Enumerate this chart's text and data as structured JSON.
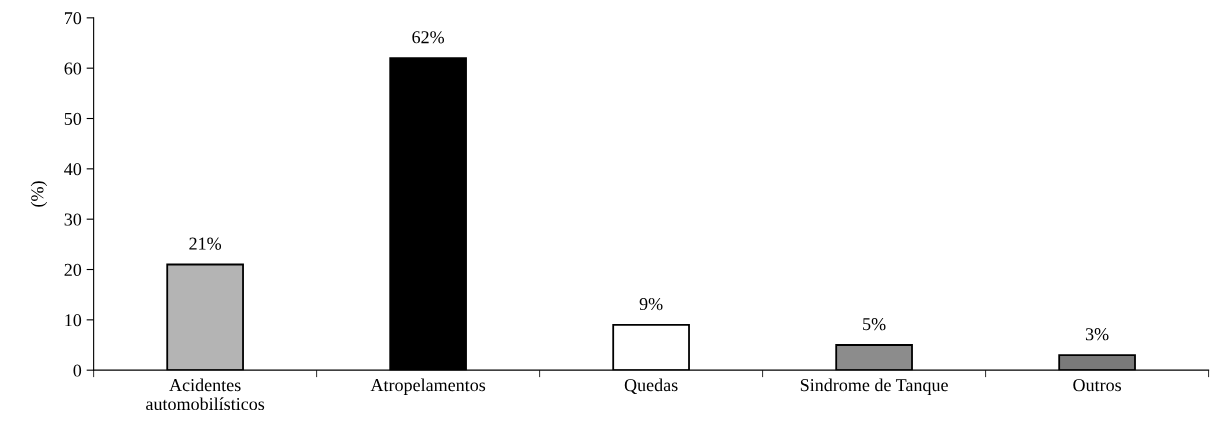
{
  "chart_data": {
    "type": "bar",
    "ylabel": "(%)",
    "categories": [
      "Acidentes\nautomobilísticos",
      "Atropelamentos",
      "Quedas",
      "Sindrome de Tanque",
      "Outros"
    ],
    "values": [
      21,
      62,
      9,
      5,
      3
    ],
    "value_labels": [
      "21%",
      "62%",
      "9%",
      "5%",
      "3%"
    ],
    "colors": [
      "#b4b4b4",
      "#000000",
      "#ffffff",
      "#8c8c8c",
      "#7a7a7a"
    ],
    "ylim": [
      0,
      70
    ],
    "yticks": [
      0,
      10,
      20,
      30,
      40,
      50,
      60,
      70
    ],
    "grid": false,
    "legend": false
  }
}
